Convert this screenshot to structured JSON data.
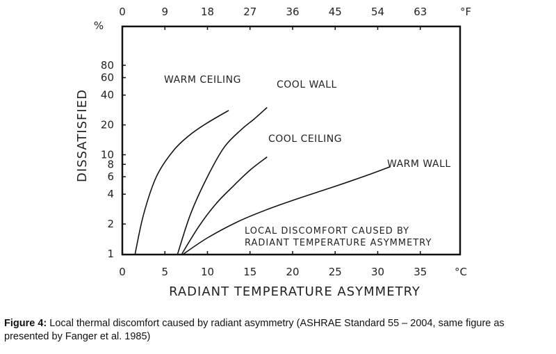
{
  "chart_data": {
    "type": "line",
    "xlabel": "RADIANT TEMPERATURE ASYMMETRY",
    "ylabel": "DISSATISFIED",
    "y_unit": "%",
    "x_unit": "°C",
    "x_top_unit": "°F",
    "yscale": "log",
    "xlim": [
      0,
      40
    ],
    "ylim": [
      1,
      100
    ],
    "grid": false,
    "x_ticks": [
      0,
      5,
      10,
      15,
      20,
      25,
      30,
      35
    ],
    "x_top_ticks": [
      0,
      9,
      18,
      27,
      36,
      45,
      54,
      63
    ],
    "y_ticks": [
      1,
      2,
      4,
      6,
      8,
      10,
      20,
      40,
      60,
      80
    ],
    "annotation": [
      "LOCAL DISCOMFORT CAUSED BY",
      "RADIANT TEMPERATURE ASYMMETRY"
    ],
    "series": [
      {
        "name": "WARM CEILING",
        "points": [
          [
            1.5,
            1
          ],
          [
            2.5,
            2.5
          ],
          [
            4,
            6
          ],
          [
            6,
            11
          ],
          [
            8,
            16
          ],
          [
            10,
            21
          ],
          [
            12.5,
            28
          ]
        ]
      },
      {
        "name": "COOL WALL",
        "points": [
          [
            6.5,
            1
          ],
          [
            8,
            2.5
          ],
          [
            10,
            6
          ],
          [
            12,
            12
          ],
          [
            14,
            18
          ],
          [
            15.5,
            23
          ],
          [
            17,
            30
          ]
        ]
      },
      {
        "name": "COOL CEILING",
        "points": [
          [
            7,
            1
          ],
          [
            9,
            1.9
          ],
          [
            11,
            3.2
          ],
          [
            13,
            4.8
          ],
          [
            15,
            7
          ],
          [
            17,
            9.5
          ]
        ]
      },
      {
        "name": "WARM WALL",
        "points": [
          [
            7.2,
            1
          ],
          [
            10,
            1.45
          ],
          [
            13.5,
            2.1
          ],
          [
            17,
            2.8
          ],
          [
            21,
            3.7
          ],
          [
            25,
            4.8
          ],
          [
            28.5,
            6.1
          ],
          [
            31.5,
            7.6
          ]
        ]
      }
    ]
  },
  "figure": {
    "caption_label": "Figure 4:",
    "caption_text": "Local thermal discomfort caused by radiant asymmetry (ASHRAE Standard 55 – 2004, same figure as presented by Fanger et al. 1985)"
  }
}
